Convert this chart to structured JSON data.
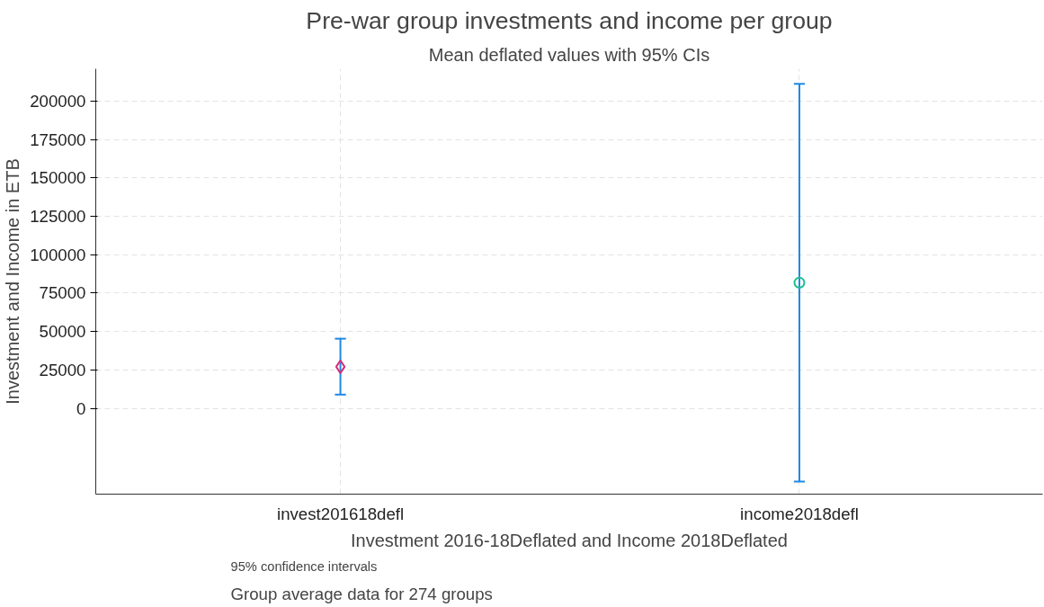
{
  "chart_data": {
    "type": "scatter",
    "title": "Pre-war group investments and income per group",
    "subtitle": "Mean deflated values with 95% CIs",
    "xlabel": "Investment 2016-18Deflated and Income 2018Deflated",
    "ylabel": "Investment and Income in ETB",
    "categories": [
      "invest201618defl",
      "income2018defl"
    ],
    "series": [
      {
        "x": [
          "invest201618defl"
        ],
        "values": [
          27000
        ],
        "errors": [
          [
            8900,
            45300
          ]
        ],
        "color": "#d6307a",
        "marker": "diamond"
      },
      {
        "x": [
          "income2018defl"
        ],
        "values": [
          81800
        ],
        "errors": [
          [
            -47700,
            211200
          ]
        ],
        "color": "#1fbf8f",
        "marker": "circle"
      }
    ],
    "ylim": [
      -55900,
      221000
    ],
    "yticks": [
      0,
      25000,
      50000,
      75000,
      100000,
      125000,
      150000,
      175000,
      200000
    ],
    "grid": true,
    "annotations": [
      "95% confidence intervals",
      "Group average data for 274 groups"
    ]
  }
}
